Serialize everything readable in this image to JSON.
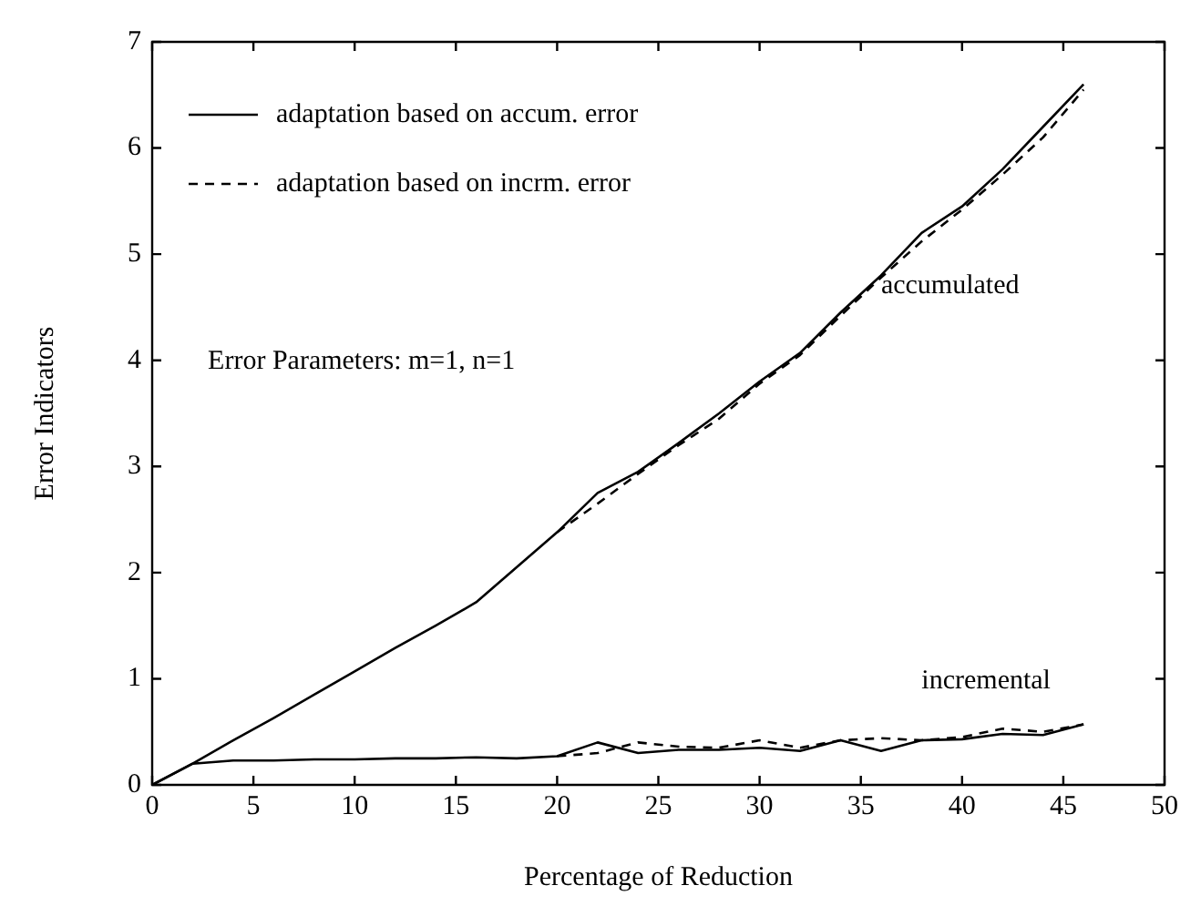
{
  "chart_data": {
    "type": "line",
    "xlabel": "Percentage of Reduction",
    "ylabel": "Error Indicators",
    "xlim": [
      0,
      50
    ],
    "xticks": [
      0,
      5,
      10,
      15,
      20,
      25,
      30,
      35,
      40,
      45,
      50
    ],
    "ylim": [
      0,
      7
    ],
    "yticks": [
      0,
      1,
      2,
      3,
      4,
      5,
      6,
      7
    ],
    "grid": false,
    "legend": "top left",
    "marker": "none",
    "series": [
      {
        "name": "adaptation based on accum. error",
        "color": "#000000",
        "line_style": "solid",
        "x": [
          0,
          2,
          4,
          6,
          8,
          10,
          12,
          14,
          16,
          18,
          20,
          22,
          24,
          26,
          28,
          30,
          32,
          34,
          36,
          38,
          40,
          42,
          44,
          46
        ],
        "values": [
          0,
          0.2,
          0.42,
          0.63,
          0.85,
          1.07,
          1.29,
          1.5,
          1.72,
          2.05,
          2.38,
          2.75,
          2.95,
          3.22,
          3.5,
          3.8,
          4.07,
          4.45,
          4.8,
          5.2,
          5.45,
          5.8,
          6.2,
          6.6
        ]
      },
      {
        "name": "adaptation based on incrm. error",
        "color": "#000000",
        "line_style": "dashed",
        "x": [
          20,
          22,
          24,
          26,
          28,
          30,
          32,
          34,
          36,
          38,
          40,
          42,
          44,
          46
        ],
        "values": [
          2.38,
          2.65,
          2.93,
          3.2,
          3.45,
          3.78,
          4.05,
          4.42,
          4.78,
          5.12,
          5.42,
          5.75,
          6.1,
          6.55
        ]
      },
      {
        "color": "#000000",
        "line_style": "solid",
        "x": [
          0,
          2,
          4,
          6,
          8,
          10,
          12,
          14,
          16,
          18,
          20,
          22,
          24,
          26,
          28,
          30,
          32,
          34,
          36,
          38,
          40,
          42,
          44,
          46
        ],
        "values": [
          0,
          0.2,
          0.23,
          0.23,
          0.24,
          0.24,
          0.25,
          0.25,
          0.26,
          0.25,
          0.27,
          0.4,
          0.3,
          0.33,
          0.33,
          0.35,
          0.32,
          0.42,
          0.32,
          0.42,
          0.43,
          0.48,
          0.47,
          0.57
        ]
      },
      {
        "color": "#000000",
        "line_style": "dashed",
        "x": [
          20,
          22,
          24,
          26,
          28,
          30,
          32,
          34,
          36,
          38,
          40,
          42,
          44,
          46
        ],
        "values": [
          0.27,
          0.3,
          0.4,
          0.36,
          0.35,
          0.42,
          0.35,
          0.42,
          0.44,
          0.42,
          0.45,
          0.53,
          0.5,
          0.57
        ]
      }
    ],
    "annotations": [
      "Error Parameters: m=1, n=1",
      {
        "text": "accumulated",
        "x": 36,
        "y": 4.7
      },
      "incremental"
    ]
  }
}
